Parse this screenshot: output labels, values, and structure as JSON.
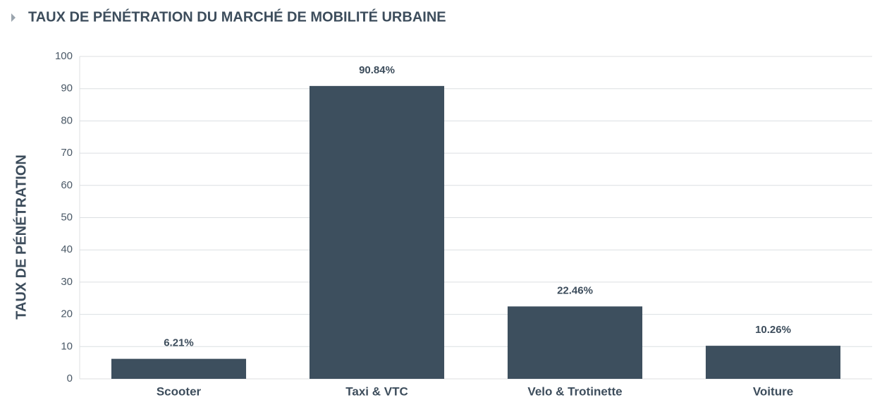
{
  "chart_data": {
    "type": "bar",
    "title": "TAUX DE PÉNÉTRATION DU MARCHÉ DE MOBILITÉ URBAINE",
    "y_label": "TAUX DE PÉNÉTRATION",
    "categories": [
      "Scooter",
      "Taxi & VTC",
      "Velo & Trotinette",
      "Voiture"
    ],
    "values": [
      6.21,
      90.84,
      22.46,
      10.26
    ],
    "value_labels": [
      "6.21%",
      "90.84%",
      "22.46%",
      "10.26%"
    ],
    "color": "#3d4f5e",
    "ylim": [
      0,
      100
    ],
    "yticks": [
      0,
      10,
      20,
      30,
      40,
      50,
      60,
      70,
      80,
      90,
      100
    ],
    "grid": true
  }
}
